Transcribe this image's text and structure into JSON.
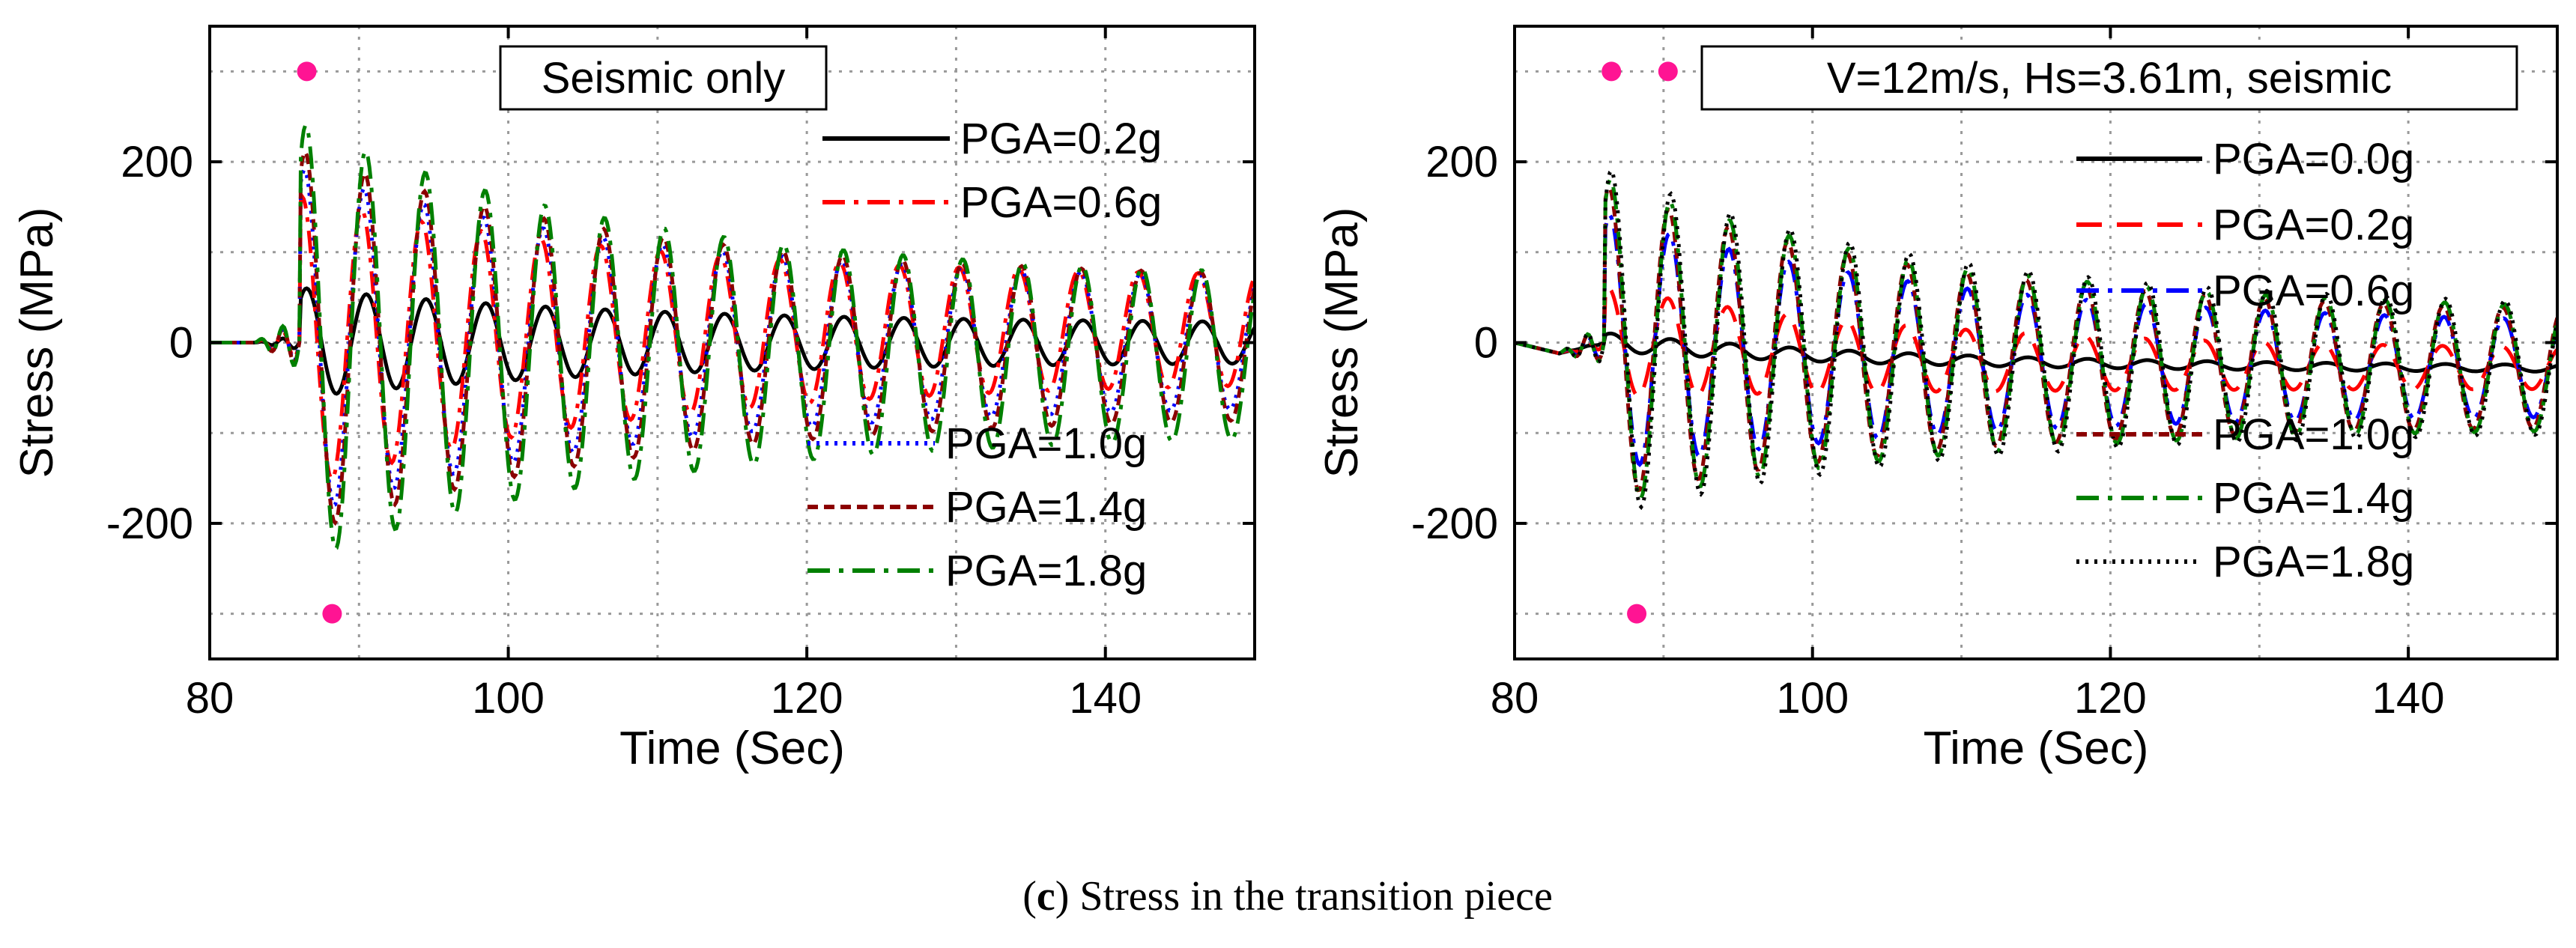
{
  "chart_data": [
    {
      "type": "line",
      "title": "Seismic only",
      "xlabel": "Time (Sec)",
      "ylabel": "Stress (MPa)",
      "xlim": [
        80,
        150
      ],
      "ylim": [
        -350,
        350
      ],
      "xticks": [
        "80",
        "100",
        "120",
        "140"
      ],
      "yticks": [
        "-200",
        "0",
        "200"
      ],
      "grid": true,
      "series": [
        {
          "name": "PGA=0.2g",
          "color": "#000000",
          "dash": "solid",
          "amp": 60,
          "offset": 0,
          "trend": 0,
          "phase": 0.0
        },
        {
          "name": "PGA=0.6g",
          "color": "#ff0000",
          "dash": "dashdot",
          "amp": 160,
          "offset": 15,
          "trend": 0,
          "phase": 0.3
        },
        {
          "name": "PGA=1.0g",
          "color": "#0000ff",
          "dash": "dot",
          "amp": 190,
          "offset": 0,
          "trend": 0,
          "phase": 0.15
        },
        {
          "name": "PGA=1.4g",
          "color": "#8b0000",
          "dash": "shortdash",
          "amp": 210,
          "offset": -5,
          "trend": 0,
          "phase": 0.1
        },
        {
          "name": "PGA=1.8g",
          "color": "#008000",
          "dash": "dashdot",
          "amp": 240,
          "offset": -15,
          "trend": 0,
          "phase": 0.05
        }
      ],
      "markers": [
        {
          "x": 86.5,
          "y": 300,
          "color": "#ff1493"
        },
        {
          "x": 88.2,
          "y": -300,
          "color": "#ff1493"
        }
      ]
    },
    {
      "type": "line",
      "title": "V=12m/s, Hs=3.61m, seismic",
      "xlabel": "Time (Sec)",
      "ylabel": "Stress (MPa)",
      "xlim": [
        80,
        150
      ],
      "ylim": [
        -350,
        350
      ],
      "xticks": [
        "80",
        "100",
        "120",
        "140"
      ],
      "yticks": [
        "-200",
        "0",
        "200"
      ],
      "grid": true,
      "series": [
        {
          "name": "PGA=0.0g",
          "color": "#000000",
          "dash": "solid",
          "amp": 10,
          "offset": -30,
          "trend": -12,
          "phase": 0.0
        },
        {
          "name": "PGA=0.2g",
          "color": "#ff0000",
          "dash": "dash",
          "amp": 60,
          "offset": -30,
          "trend": -12,
          "phase": 0.2
        },
        {
          "name": "PGA=0.6g",
          "color": "#0000ff",
          "dash": "dashdot",
          "amp": 140,
          "offset": -30,
          "trend": -12,
          "phase": 0.1
        },
        {
          "name": "PGA=1.0g",
          "color": "#8b0000",
          "dash": "shortdash",
          "amp": 170,
          "offset": -30,
          "trend": -12,
          "phase": 0.15
        },
        {
          "name": "PGA=1.4g",
          "color": "#008000",
          "dash": "dashdot",
          "amp": 180,
          "offset": -30,
          "trend": -12,
          "phase": 0.05
        },
        {
          "name": "PGA=1.8g",
          "color": "#000000",
          "dash": "dot",
          "amp": 190,
          "offset": -30,
          "trend": -12,
          "phase": 0.0
        }
      ],
      "markers": [
        {
          "x": 86.5,
          "y": 300,
          "color": "#ff1493"
        },
        {
          "x": 90.3,
          "y": 300,
          "color": "#ff1493"
        },
        {
          "x": 88.2,
          "y": -300,
          "color": "#ff1493"
        }
      ]
    }
  ],
  "caption": {
    "label": "c",
    "text": " Stress in the transition piece"
  }
}
